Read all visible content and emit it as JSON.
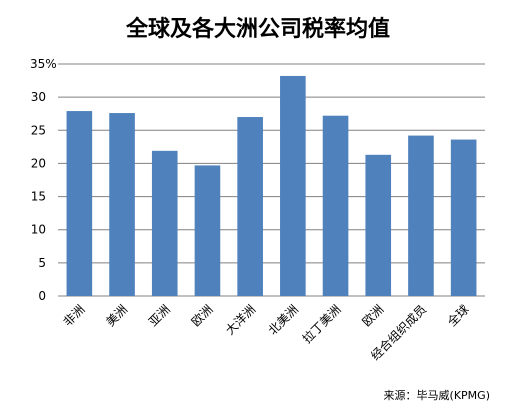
{
  "chart_data": {
    "type": "bar",
    "title": "全球及各大洲公司税率均值",
    "source": "来源：毕马威(KPMG)",
    "categories": [
      "非洲",
      "美洲",
      "亚洲",
      "欧洲",
      "大洋洲",
      "北美洲",
      "拉丁美洲",
      "欧洲",
      "经合组织成员",
      "全球"
    ],
    "values": [
      27.9,
      27.6,
      21.9,
      19.7,
      27.0,
      33.2,
      27.2,
      21.3,
      24.2,
      23.6
    ],
    "ylim": [
      0,
      35
    ],
    "yticks": [
      "0",
      "5",
      "10",
      "15",
      "20",
      "25",
      "30",
      "35%"
    ],
    "xlabel": "",
    "ylabel": "",
    "grid": true,
    "legend": "none",
    "bar_color": "#4f81bd",
    "grid_color": "#808080"
  }
}
